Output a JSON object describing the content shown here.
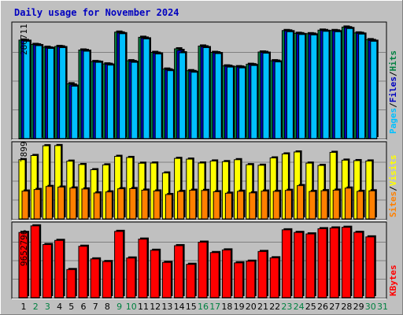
{
  "title": "Daily usage for November 2024",
  "colors": {
    "background": "#c0c0c0",
    "frame_dark": "#808080",
    "frame_light": "#ffffff",
    "title": "#0000c0",
    "pages": "#00c0ff",
    "files": "#0000c0",
    "hits": "#008040",
    "sites": "#ff8000",
    "visits": "#ffff00",
    "kbytes": "#ff0000",
    "weekday": "#000000",
    "weekend": "#008040"
  },
  "chart_data": [
    {
      "type": "bar",
      "panel": "hits",
      "max_label": "280711",
      "right_label_parts": [
        {
          "text": "Pages",
          "color": "#00c0ff"
        },
        {
          "text": "/",
          "color": "#000000"
        },
        {
          "text": "Files",
          "color": "#0000c0"
        },
        {
          "text": "/",
          "color": "#000000"
        },
        {
          "text": "Hits",
          "color": "#008040"
        }
      ],
      "categories": [
        "1",
        "2",
        "3",
        "4",
        "5",
        "6",
        "7",
        "8",
        "9",
        "10",
        "11",
        "12",
        "13",
        "14",
        "15",
        "16",
        "17",
        "18",
        "19",
        "20",
        "21",
        "22",
        "23",
        "24",
        "25",
        "26",
        "27",
        "28",
        "29",
        "30",
        "31"
      ],
      "ylim": [
        0,
        280711
      ],
      "series": [
        {
          "name": "Hits",
          "color": "#008040",
          "values": [
            248000,
            237000,
            230000,
            232000,
            138000,
            223000,
            194000,
            188000,
            268000,
            196000,
            255000,
            217000,
            175000,
            226000,
            171000,
            233000,
            217000,
            183000,
            181000,
            187000,
            218000,
            196000,
            272000,
            265000,
            264000,
            273000,
            272000,
            280711,
            266000,
            249000,
            0
          ]
        },
        {
          "name": "Files",
          "color": "#0000c0",
          "values": [
            247000,
            236000,
            228000,
            231000,
            135000,
            222000,
            193000,
            187000,
            266000,
            194000,
            253000,
            215000,
            173000,
            222000,
            169000,
            231000,
            216000,
            182000,
            180000,
            186000,
            217000,
            195000,
            271000,
            264000,
            263000,
            272000,
            271000,
            279000,
            265000,
            247000,
            0
          ]
        },
        {
          "name": "Pages",
          "color": "#00c0ff",
          "values": [
            245000,
            234000,
            227000,
            229000,
            132000,
            220000,
            192000,
            185000,
            264000,
            192000,
            251000,
            213000,
            171000,
            216000,
            167000,
            229000,
            214000,
            180000,
            178000,
            184000,
            215000,
            193000,
            269000,
            262000,
            261000,
            270000,
            269000,
            277000,
            263000,
            245000,
            0
          ]
        }
      ]
    },
    {
      "type": "bar",
      "panel": "visits",
      "max_label": "7899",
      "right_label_parts": [
        {
          "text": "Sites",
          "color": "#ff8000"
        },
        {
          "text": "/",
          "color": "#000000"
        },
        {
          "text": "Visits",
          "color": "#ffff00"
        }
      ],
      "categories": [
        "1",
        "2",
        "3",
        "4",
        "5",
        "6",
        "7",
        "8",
        "9",
        "10",
        "11",
        "12",
        "13",
        "14",
        "15",
        "16",
        "17",
        "18",
        "19",
        "20",
        "21",
        "22",
        "23",
        "24",
        "25",
        "26",
        "27",
        "28",
        "29",
        "30",
        "31"
      ],
      "ylim": [
        0,
        7899
      ],
      "series": [
        {
          "name": "Visits",
          "color": "#ffff00",
          "values": [
            6380,
            6830,
            7880,
            7899,
            6220,
            5860,
            5300,
            5820,
            6740,
            6620,
            6000,
            6020,
            4950,
            6520,
            6440,
            6020,
            6240,
            6170,
            6380,
            5840,
            5780,
            6570,
            7000,
            7210,
            6010,
            5760,
            7170,
            6330,
            6280,
            6240,
            0
          ]
        },
        {
          "name": "Sites",
          "color": "#ff8000",
          "values": [
            3000,
            3170,
            3500,
            3430,
            3330,
            3230,
            2800,
            2910,
            3250,
            3270,
            3100,
            3010,
            2630,
            2960,
            3090,
            3070,
            2930,
            2770,
            2980,
            2810,
            3000,
            2970,
            3080,
            3590,
            2960,
            3040,
            3100,
            3320,
            2970,
            3030,
            0
          ]
        }
      ]
    },
    {
      "type": "bar",
      "panel": "kbytes",
      "max_label": "9652796",
      "right_label_parts": [
        {
          "text": "KBytes",
          "color": "#ff0000"
        }
      ],
      "categories": [
        "1",
        "2",
        "3",
        "4",
        "5",
        "6",
        "7",
        "8",
        "9",
        "10",
        "11",
        "12",
        "13",
        "14",
        "15",
        "16",
        "17",
        "18",
        "19",
        "20",
        "21",
        "22",
        "23",
        "24",
        "25",
        "26",
        "27",
        "28",
        "29",
        "30",
        "31"
      ],
      "ylim": [
        0,
        9652796
      ],
      "series": [
        {
          "name": "KBytes",
          "color": "#ff0000",
          "values": [
            8770000,
            9652796,
            7140000,
            7700000,
            3780000,
            6910000,
            5210000,
            4850000,
            8910000,
            5330000,
            7870000,
            6370000,
            4740000,
            6990000,
            4480000,
            7460000,
            6060000,
            6420000,
            4680000,
            4900000,
            6210000,
            5360000,
            9120000,
            8770000,
            8570000,
            9270000,
            9370000,
            9460000,
            8780000,
            8170000,
            0
          ]
        }
      ]
    }
  ],
  "day_labels": [
    {
      "text": "1",
      "weekend": false
    },
    {
      "text": "2",
      "weekend": true
    },
    {
      "text": "3",
      "weekend": true
    },
    {
      "text": "4",
      "weekend": false
    },
    {
      "text": "5",
      "weekend": false
    },
    {
      "text": "6",
      "weekend": false
    },
    {
      "text": "7",
      "weekend": false
    },
    {
      "text": "8",
      "weekend": false
    },
    {
      "text": "9",
      "weekend": true
    },
    {
      "text": "10",
      "weekend": true
    },
    {
      "text": "11",
      "weekend": false
    },
    {
      "text": "12",
      "weekend": false
    },
    {
      "text": "13",
      "weekend": false
    },
    {
      "text": "14",
      "weekend": false
    },
    {
      "text": "15",
      "weekend": false
    },
    {
      "text": "16",
      "weekend": true
    },
    {
      "text": "17",
      "weekend": true
    },
    {
      "text": "18",
      "weekend": false
    },
    {
      "text": "19",
      "weekend": false
    },
    {
      "text": "20",
      "weekend": false
    },
    {
      "text": "21",
      "weekend": false
    },
    {
      "text": "22",
      "weekend": false
    },
    {
      "text": "23",
      "weekend": true
    },
    {
      "text": "24",
      "weekend": true
    },
    {
      "text": "25",
      "weekend": false
    },
    {
      "text": "26",
      "weekend": false
    },
    {
      "text": "27",
      "weekend": false
    },
    {
      "text": "28",
      "weekend": false
    },
    {
      "text": "29",
      "weekend": false
    },
    {
      "text": "30",
      "weekend": true
    },
    {
      "text": "31",
      "weekend": true
    }
  ]
}
